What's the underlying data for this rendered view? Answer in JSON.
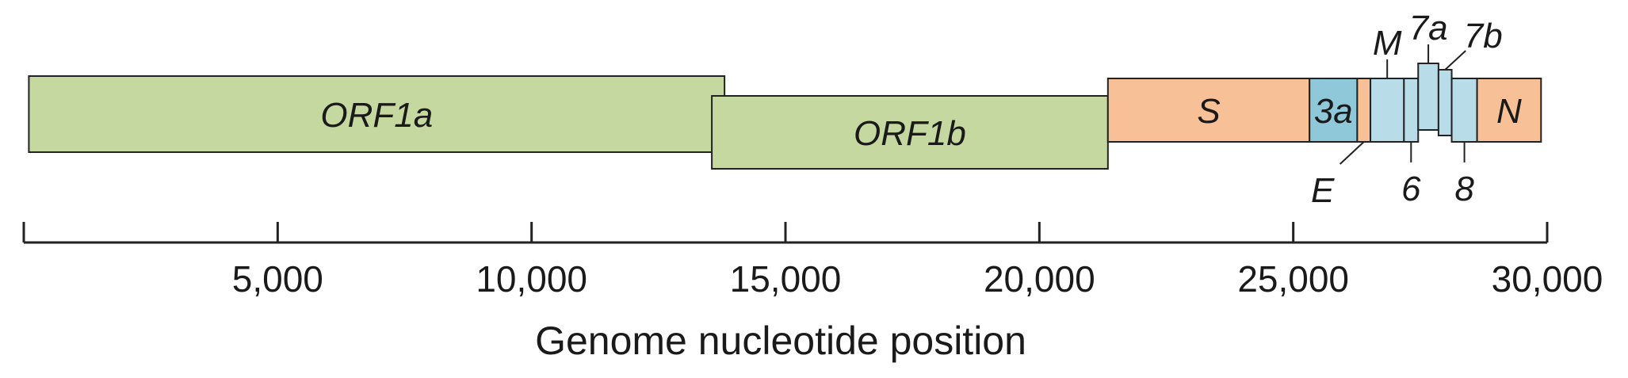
{
  "genome": {
    "axis_title": "Genome nucleotide position",
    "axis_range": [
      0,
      30000
    ],
    "ticks": [
      {
        "value": 5000,
        "label": "5,000"
      },
      {
        "value": 10000,
        "label": "10,000"
      },
      {
        "value": 15000,
        "label": "15,000"
      },
      {
        "value": 20000,
        "label": "20,000"
      },
      {
        "value": 25000,
        "label": "25,000"
      },
      {
        "value": 30000,
        "label": "30,000"
      }
    ],
    "colors": {
      "orf1": "#c5d89f",
      "structural": "#f8c096",
      "accessory": "#b9dde8",
      "orf3a": "#8ec8d9",
      "line": "#222222"
    },
    "genes": [
      {
        "name": "ORF1a",
        "start": 100,
        "end": 13800,
        "row": "upper",
        "color": "orf1",
        "label": "ORF1a",
        "label_mode": "inside"
      },
      {
        "name": "ORF1b",
        "start": 13550,
        "end": 21350,
        "row": "lower",
        "color": "orf1",
        "label": "ORF1b",
        "label_mode": "inside"
      },
      {
        "name": "S",
        "start": 21350,
        "end": 25320,
        "row": "main",
        "color": "structural",
        "label": "S",
        "label_mode": "inside"
      },
      {
        "name": "3a",
        "start": 25320,
        "end": 26260,
        "row": "main",
        "color": "orf3a",
        "label": "3a",
        "label_mode": "inside"
      },
      {
        "name": "E",
        "start": 26260,
        "end": 26520,
        "row": "main",
        "color": "structural",
        "label": "E",
        "label_mode": "below"
      },
      {
        "name": "M",
        "start": 26520,
        "end": 27180,
        "row": "main",
        "color": "accessory",
        "label": "M",
        "label_mode": "above"
      },
      {
        "name": "6",
        "start": 27180,
        "end": 27460,
        "row": "main",
        "color": "accessory",
        "label": "6",
        "label_mode": "below"
      },
      {
        "name": "7a",
        "start": 27460,
        "end": 27860,
        "row": "tall",
        "color": "accessory",
        "label": "7a",
        "label_mode": "above"
      },
      {
        "name": "7b",
        "start": 27860,
        "end": 28120,
        "row": "mid",
        "color": "accessory",
        "label": "7b",
        "label_mode": "above-right"
      },
      {
        "name": "8",
        "start": 28120,
        "end": 28620,
        "row": "main",
        "color": "accessory",
        "label": "8",
        "label_mode": "below"
      },
      {
        "name": "N",
        "start": 28620,
        "end": 29880,
        "row": "main",
        "color": "structural",
        "label": "N",
        "label_mode": "inside"
      }
    ]
  }
}
